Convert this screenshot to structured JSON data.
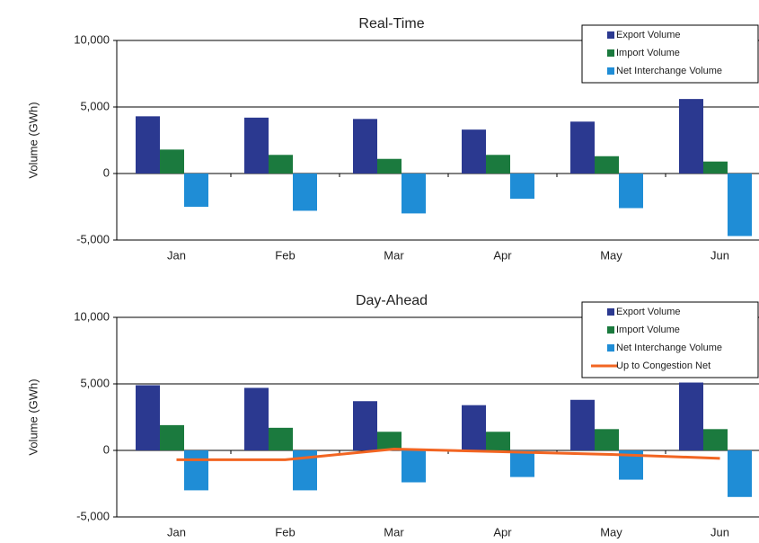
{
  "chart_data": [
    {
      "type": "bar",
      "title": "Real-Time",
      "y_label": "Volume (GWh)",
      "categories": [
        "Jan",
        "Feb",
        "Mar",
        "Apr",
        "May",
        "Jun"
      ],
      "series": [
        {
          "name": "Export Volume",
          "color": "#2b3990",
          "values": [
            4300,
            4200,
            4100,
            3300,
            3900,
            5600
          ]
        },
        {
          "name": "Import Volume",
          "color": "#1b7a3e",
          "values": [
            1800,
            1400,
            1100,
            1400,
            1300,
            900
          ]
        },
        {
          "name": "Net Interchange Volume",
          "color": "#1f8dd6",
          "values": [
            -2500,
            -2800,
            -3000,
            -1900,
            -2600,
            -4700
          ]
        }
      ],
      "ylim": [
        -5000,
        10000
      ],
      "yticks": [
        {
          "value": -5000,
          "label": "-5,000"
        },
        0,
        {
          "value": 5000,
          "label": "5,000"
        },
        {
          "value": 10000,
          "label": "10,000"
        }
      ],
      "grid": true,
      "legend": "upper right"
    },
    {
      "type": "bar",
      "title": "Day-Ahead",
      "y_label": "Volume (GWh)",
      "categories": [
        "Jan",
        "Feb",
        "Mar",
        "Apr",
        "May",
        "Jun"
      ],
      "series": [
        {
          "name": "Export Volume",
          "color": "#2b3990",
          "values": [
            4900,
            4700,
            3700,
            3400,
            3800,
            5100
          ]
        },
        {
          "name": "Import Volume",
          "color": "#1b7a3e",
          "values": [
            1900,
            1700,
            1400,
            1400,
            1600,
            1600
          ]
        },
        {
          "name": "Net Interchange Volume",
          "color": "#1f8dd6",
          "values": [
            -3000,
            -3000,
            -2400,
            -2000,
            -2200,
            -3500
          ]
        },
        {
          "name": "Up to Congestion Net",
          "color": "#f26522",
          "type": "line",
          "values": [
            -700,
            -700,
            100,
            -100,
            -300,
            -600
          ]
        }
      ],
      "ylim": [
        -5000,
        10000
      ],
      "yticks": [
        {
          "value": -5000,
          "label": "-5,000"
        },
        0,
        {
          "value": 5000,
          "label": "5,000"
        },
        {
          "value": 10000,
          "label": "10,000"
        }
      ],
      "grid": true,
      "legend": "upper right"
    }
  ]
}
